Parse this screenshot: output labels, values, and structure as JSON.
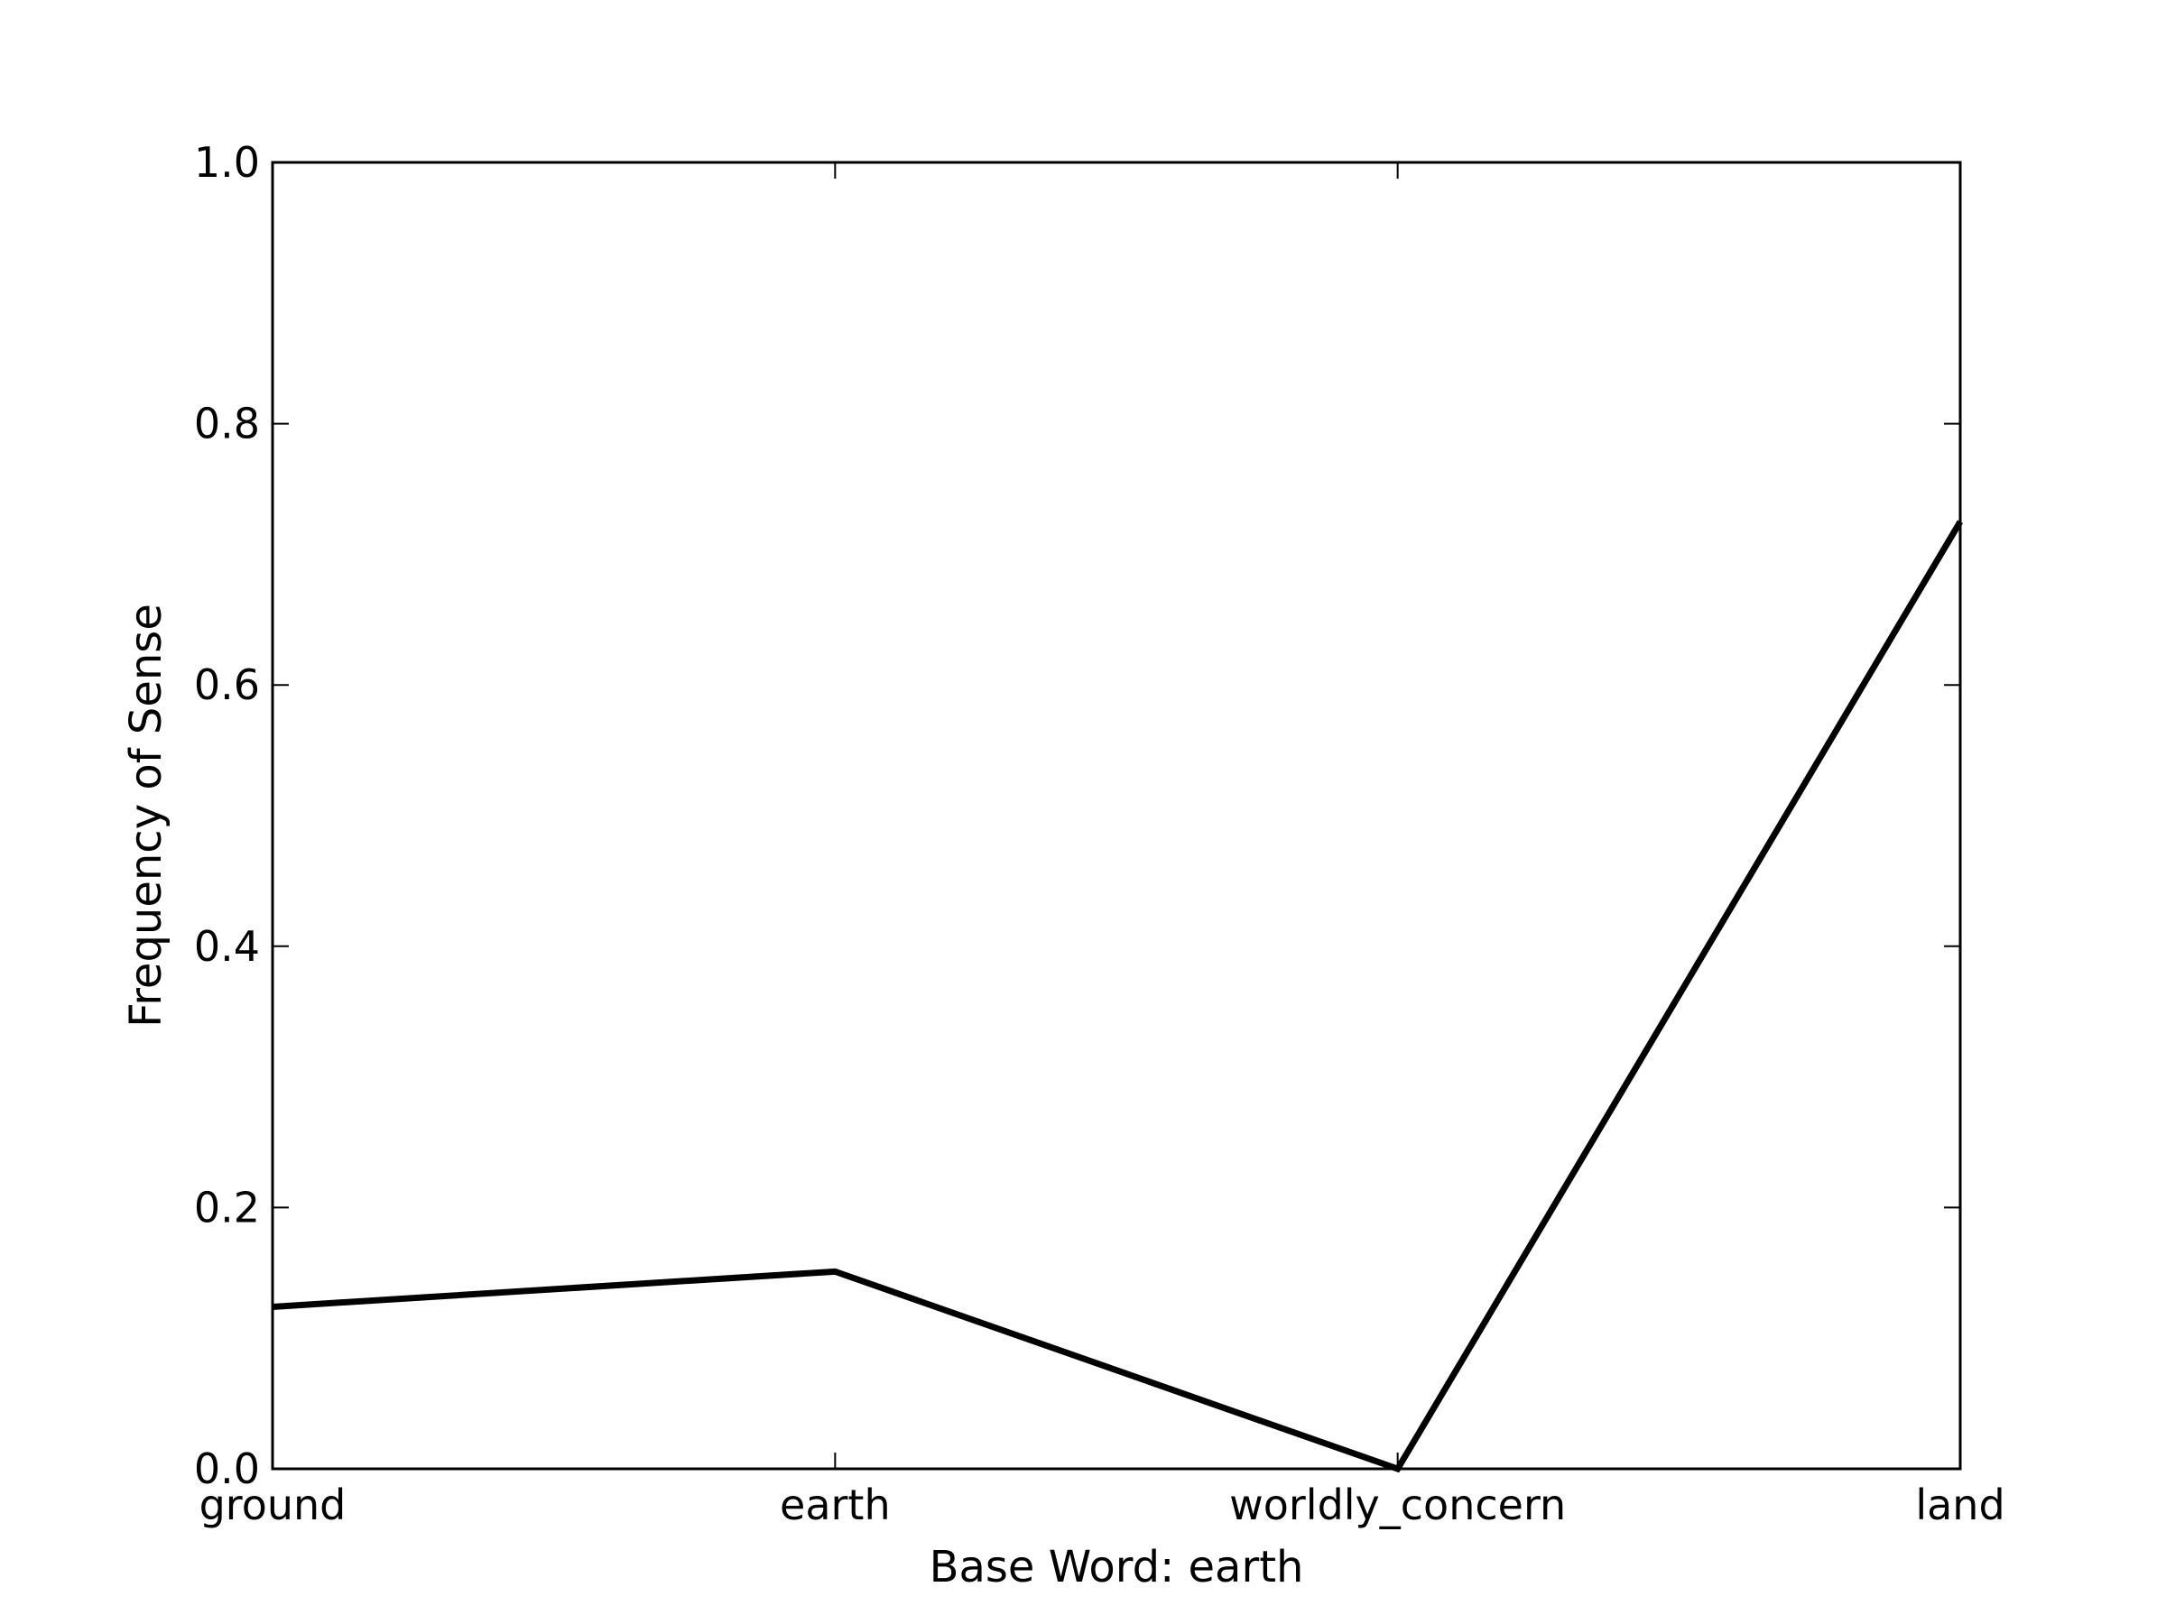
{
  "chart_data": {
    "type": "line",
    "title": "",
    "xlabel": "Base Word: earth",
    "ylabel": "Frequency of Sense",
    "categories": [
      "ground",
      "earth",
      "worldly_concern",
      "land"
    ],
    "series": [
      {
        "values": [
          0.124,
          0.151,
          0.0,
          0.725
        ],
        "color": "#000000"
      }
    ],
    "ylim": [
      0.0,
      1.0
    ],
    "yticks": [
      "0.0",
      "0.2",
      "0.4",
      "0.6",
      "0.8",
      "1.0"
    ],
    "grid": false
  }
}
